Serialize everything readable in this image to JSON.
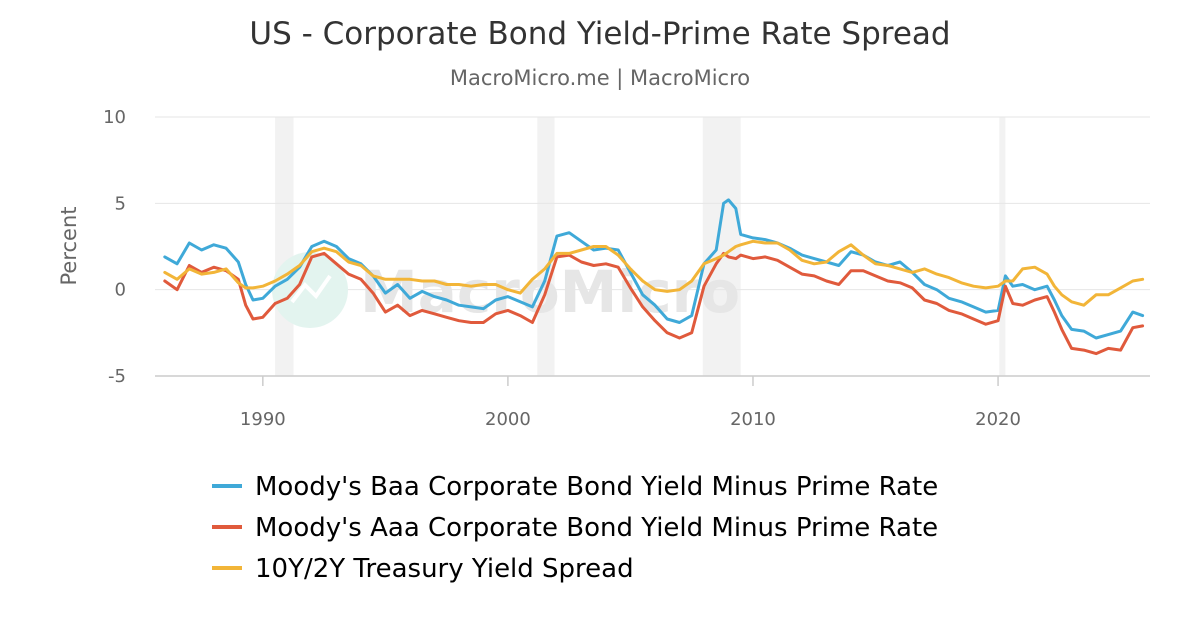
{
  "chart_data": {
    "type": "line",
    "title": "US - Corporate Bond Yield-Prime Rate Spread",
    "subtitle": "MacroMicro.me | MacroMicro",
    "watermark": "MacroMicro",
    "ylabel": "Percent",
    "xlim": [
      1985.6,
      2026.2
    ],
    "ylim": [
      -5,
      10
    ],
    "yticks": [
      -5,
      0,
      5,
      10
    ],
    "xticks": [
      1990,
      2000,
      2010,
      2020
    ],
    "grid": true,
    "legend_position": "bottom",
    "recessions": [
      [
        1990.5,
        1991.25
      ],
      [
        2001.2,
        2001.9
      ],
      [
        2007.95,
        2009.5
      ],
      [
        2020.05,
        2020.3
      ]
    ],
    "series": [
      {
        "name": "Moody's Baa Corporate Bond Yield Minus Prime Rate",
        "color": "#3fa9d8",
        "x": [
          1986.0,
          1986.5,
          1987.0,
          1987.5,
          1988.0,
          1988.5,
          1989.0,
          1989.3,
          1989.6,
          1990.0,
          1990.5,
          1991.0,
          1991.5,
          1992.0,
          1992.5,
          1993.0,
          1993.5,
          1994.0,
          1994.5,
          1995.0,
          1995.5,
          1996.0,
          1996.5,
          1997.0,
          1997.5,
          1998.0,
          1998.5,
          1999.0,
          1999.5,
          2000.0,
          2000.5,
          2001.0,
          2001.5,
          2002.0,
          2002.5,
          2003.0,
          2003.5,
          2004.0,
          2004.5,
          2005.0,
          2005.5,
          2006.0,
          2006.5,
          2007.0,
          2007.5,
          2008.0,
          2008.5,
          2008.8,
          2009.0,
          2009.3,
          2009.5,
          2010.0,
          2010.5,
          2011.0,
          2011.5,
          2012.0,
          2012.5,
          2013.0,
          2013.5,
          2014.0,
          2014.5,
          2015.0,
          2015.5,
          2016.0,
          2016.5,
          2017.0,
          2017.5,
          2018.0,
          2018.5,
          2019.0,
          2019.5,
          2020.0,
          2020.3,
          2020.6,
          2021.0,
          2021.5,
          2022.0,
          2022.3,
          2022.6,
          2023.0,
          2023.5,
          2024.0,
          2024.5,
          2025.0,
          2025.5,
          2025.9
        ],
        "y": [
          1.9,
          1.5,
          2.7,
          2.3,
          2.6,
          2.4,
          1.6,
          0.3,
          -0.6,
          -0.5,
          0.2,
          0.6,
          1.3,
          2.5,
          2.8,
          2.5,
          1.8,
          1.5,
          0.8,
          -0.2,
          0.3,
          -0.5,
          -0.1,
          -0.4,
          -0.6,
          -0.9,
          -1.0,
          -1.1,
          -0.6,
          -0.4,
          -0.7,
          -1.0,
          0.5,
          3.1,
          3.3,
          2.8,
          2.3,
          2.4,
          2.3,
          1.0,
          -0.3,
          -0.9,
          -1.7,
          -1.9,
          -1.5,
          1.5,
          2.3,
          5.0,
          5.2,
          4.7,
          3.2,
          3.0,
          2.9,
          2.7,
          2.4,
          2.0,
          1.8,
          1.6,
          1.4,
          2.2,
          2.0,
          1.6,
          1.4,
          1.6,
          1.0,
          0.3,
          0.0,
          -0.5,
          -0.7,
          -1.0,
          -1.3,
          -1.2,
          0.8,
          0.2,
          0.3,
          0.0,
          0.2,
          -0.6,
          -1.5,
          -2.3,
          -2.4,
          -2.8,
          -2.6,
          -2.4,
          -1.3,
          -1.5
        ]
      },
      {
        "name": "Moody's Aaa Corporate Bond Yield Minus Prime Rate",
        "color": "#e05a3c",
        "x": [
          1986.0,
          1986.5,
          1987.0,
          1987.5,
          1988.0,
          1988.5,
          1989.0,
          1989.3,
          1989.6,
          1990.0,
          1990.5,
          1991.0,
          1991.5,
          1992.0,
          1992.5,
          1993.0,
          1993.5,
          1994.0,
          1994.5,
          1995.0,
          1995.5,
          1996.0,
          1996.5,
          1997.0,
          1997.5,
          1998.0,
          1998.5,
          1999.0,
          1999.5,
          2000.0,
          2000.5,
          2001.0,
          2001.5,
          2002.0,
          2002.5,
          2003.0,
          2003.5,
          2004.0,
          2004.5,
          2005.0,
          2005.5,
          2006.0,
          2006.5,
          2007.0,
          2007.5,
          2008.0,
          2008.5,
          2008.8,
          2009.0,
          2009.3,
          2009.5,
          2010.0,
          2010.5,
          2011.0,
          2011.5,
          2012.0,
          2012.5,
          2013.0,
          2013.5,
          2014.0,
          2014.5,
          2015.0,
          2015.5,
          2016.0,
          2016.5,
          2017.0,
          2017.5,
          2018.0,
          2018.5,
          2019.0,
          2019.5,
          2020.0,
          2020.3,
          2020.6,
          2021.0,
          2021.5,
          2022.0,
          2022.3,
          2022.6,
          2023.0,
          2023.5,
          2024.0,
          2024.5,
          2025.0,
          2025.5,
          2025.9
        ],
        "y": [
          0.5,
          0.0,
          1.4,
          1.0,
          1.3,
          1.1,
          0.6,
          -0.9,
          -1.7,
          -1.6,
          -0.8,
          -0.5,
          0.3,
          1.9,
          2.1,
          1.5,
          0.9,
          0.6,
          -0.2,
          -1.3,
          -0.9,
          -1.5,
          -1.2,
          -1.4,
          -1.6,
          -1.8,
          -1.9,
          -1.9,
          -1.4,
          -1.2,
          -1.5,
          -1.9,
          -0.3,
          1.9,
          2.0,
          1.6,
          1.4,
          1.5,
          1.3,
          0.1,
          -1.0,
          -1.8,
          -2.5,
          -2.8,
          -2.5,
          0.2,
          1.5,
          2.1,
          1.9,
          1.8,
          2.0,
          1.8,
          1.9,
          1.7,
          1.3,
          0.9,
          0.8,
          0.5,
          0.3,
          1.1,
          1.1,
          0.8,
          0.5,
          0.4,
          0.1,
          -0.6,
          -0.8,
          -1.2,
          -1.4,
          -1.7,
          -2.0,
          -1.8,
          0.2,
          -0.8,
          -0.9,
          -0.6,
          -0.4,
          -1.3,
          -2.3,
          -3.4,
          -3.5,
          -3.7,
          -3.4,
          -3.5,
          -2.2,
          -2.1
        ]
      },
      {
        "name": "10Y/2Y Treasury Yield Spread",
        "color": "#f2b538",
        "x": [
          1986.0,
          1986.5,
          1987.0,
          1987.5,
          1988.0,
          1988.5,
          1989.0,
          1989.3,
          1989.6,
          1990.0,
          1990.5,
          1991.0,
          1991.5,
          1992.0,
          1992.5,
          1993.0,
          1993.5,
          1994.0,
          1994.5,
          1995.0,
          1995.5,
          1996.0,
          1996.5,
          1997.0,
          1997.5,
          1998.0,
          1998.5,
          1999.0,
          1999.5,
          2000.0,
          2000.5,
          2001.0,
          2001.5,
          2002.0,
          2002.5,
          2003.0,
          2003.5,
          2004.0,
          2004.5,
          2005.0,
          2005.5,
          2006.0,
          2006.5,
          2007.0,
          2007.5,
          2008.0,
          2008.5,
          2008.8,
          2009.0,
          2009.3,
          2009.5,
          2010.0,
          2010.5,
          2011.0,
          2011.5,
          2012.0,
          2012.5,
          2013.0,
          2013.5,
          2014.0,
          2014.5,
          2015.0,
          2015.5,
          2016.0,
          2016.5,
          2017.0,
          2017.5,
          2018.0,
          2018.5,
          2019.0,
          2019.5,
          2020.0,
          2020.3,
          2020.6,
          2021.0,
          2021.5,
          2022.0,
          2022.3,
          2022.6,
          2023.0,
          2023.5,
          2024.0,
          2024.5,
          2025.0,
          2025.5,
          2025.9
        ],
        "y": [
          1.0,
          0.6,
          1.2,
          0.9,
          1.0,
          1.2,
          0.4,
          0.1,
          0.1,
          0.2,
          0.5,
          0.9,
          1.4,
          2.2,
          2.4,
          2.2,
          1.6,
          1.4,
          0.8,
          0.6,
          0.6,
          0.6,
          0.5,
          0.5,
          0.3,
          0.3,
          0.2,
          0.3,
          0.3,
          0.0,
          -0.2,
          0.6,
          1.2,
          2.1,
          2.1,
          2.3,
          2.5,
          2.5,
          2.0,
          1.2,
          0.5,
          0.0,
          -0.1,
          0.0,
          0.5,
          1.5,
          1.8,
          2.0,
          2.2,
          2.5,
          2.6,
          2.8,
          2.7,
          2.7,
          2.3,
          1.7,
          1.5,
          1.6,
          2.2,
          2.6,
          2.0,
          1.5,
          1.4,
          1.2,
          1.0,
          1.2,
          0.9,
          0.7,
          0.4,
          0.2,
          0.1,
          0.2,
          0.5,
          0.5,
          1.2,
          1.3,
          0.9,
          0.2,
          -0.3,
          -0.7,
          -0.9,
          -0.3,
          -0.3,
          0.1,
          0.5,
          0.6
        ]
      }
    ]
  }
}
